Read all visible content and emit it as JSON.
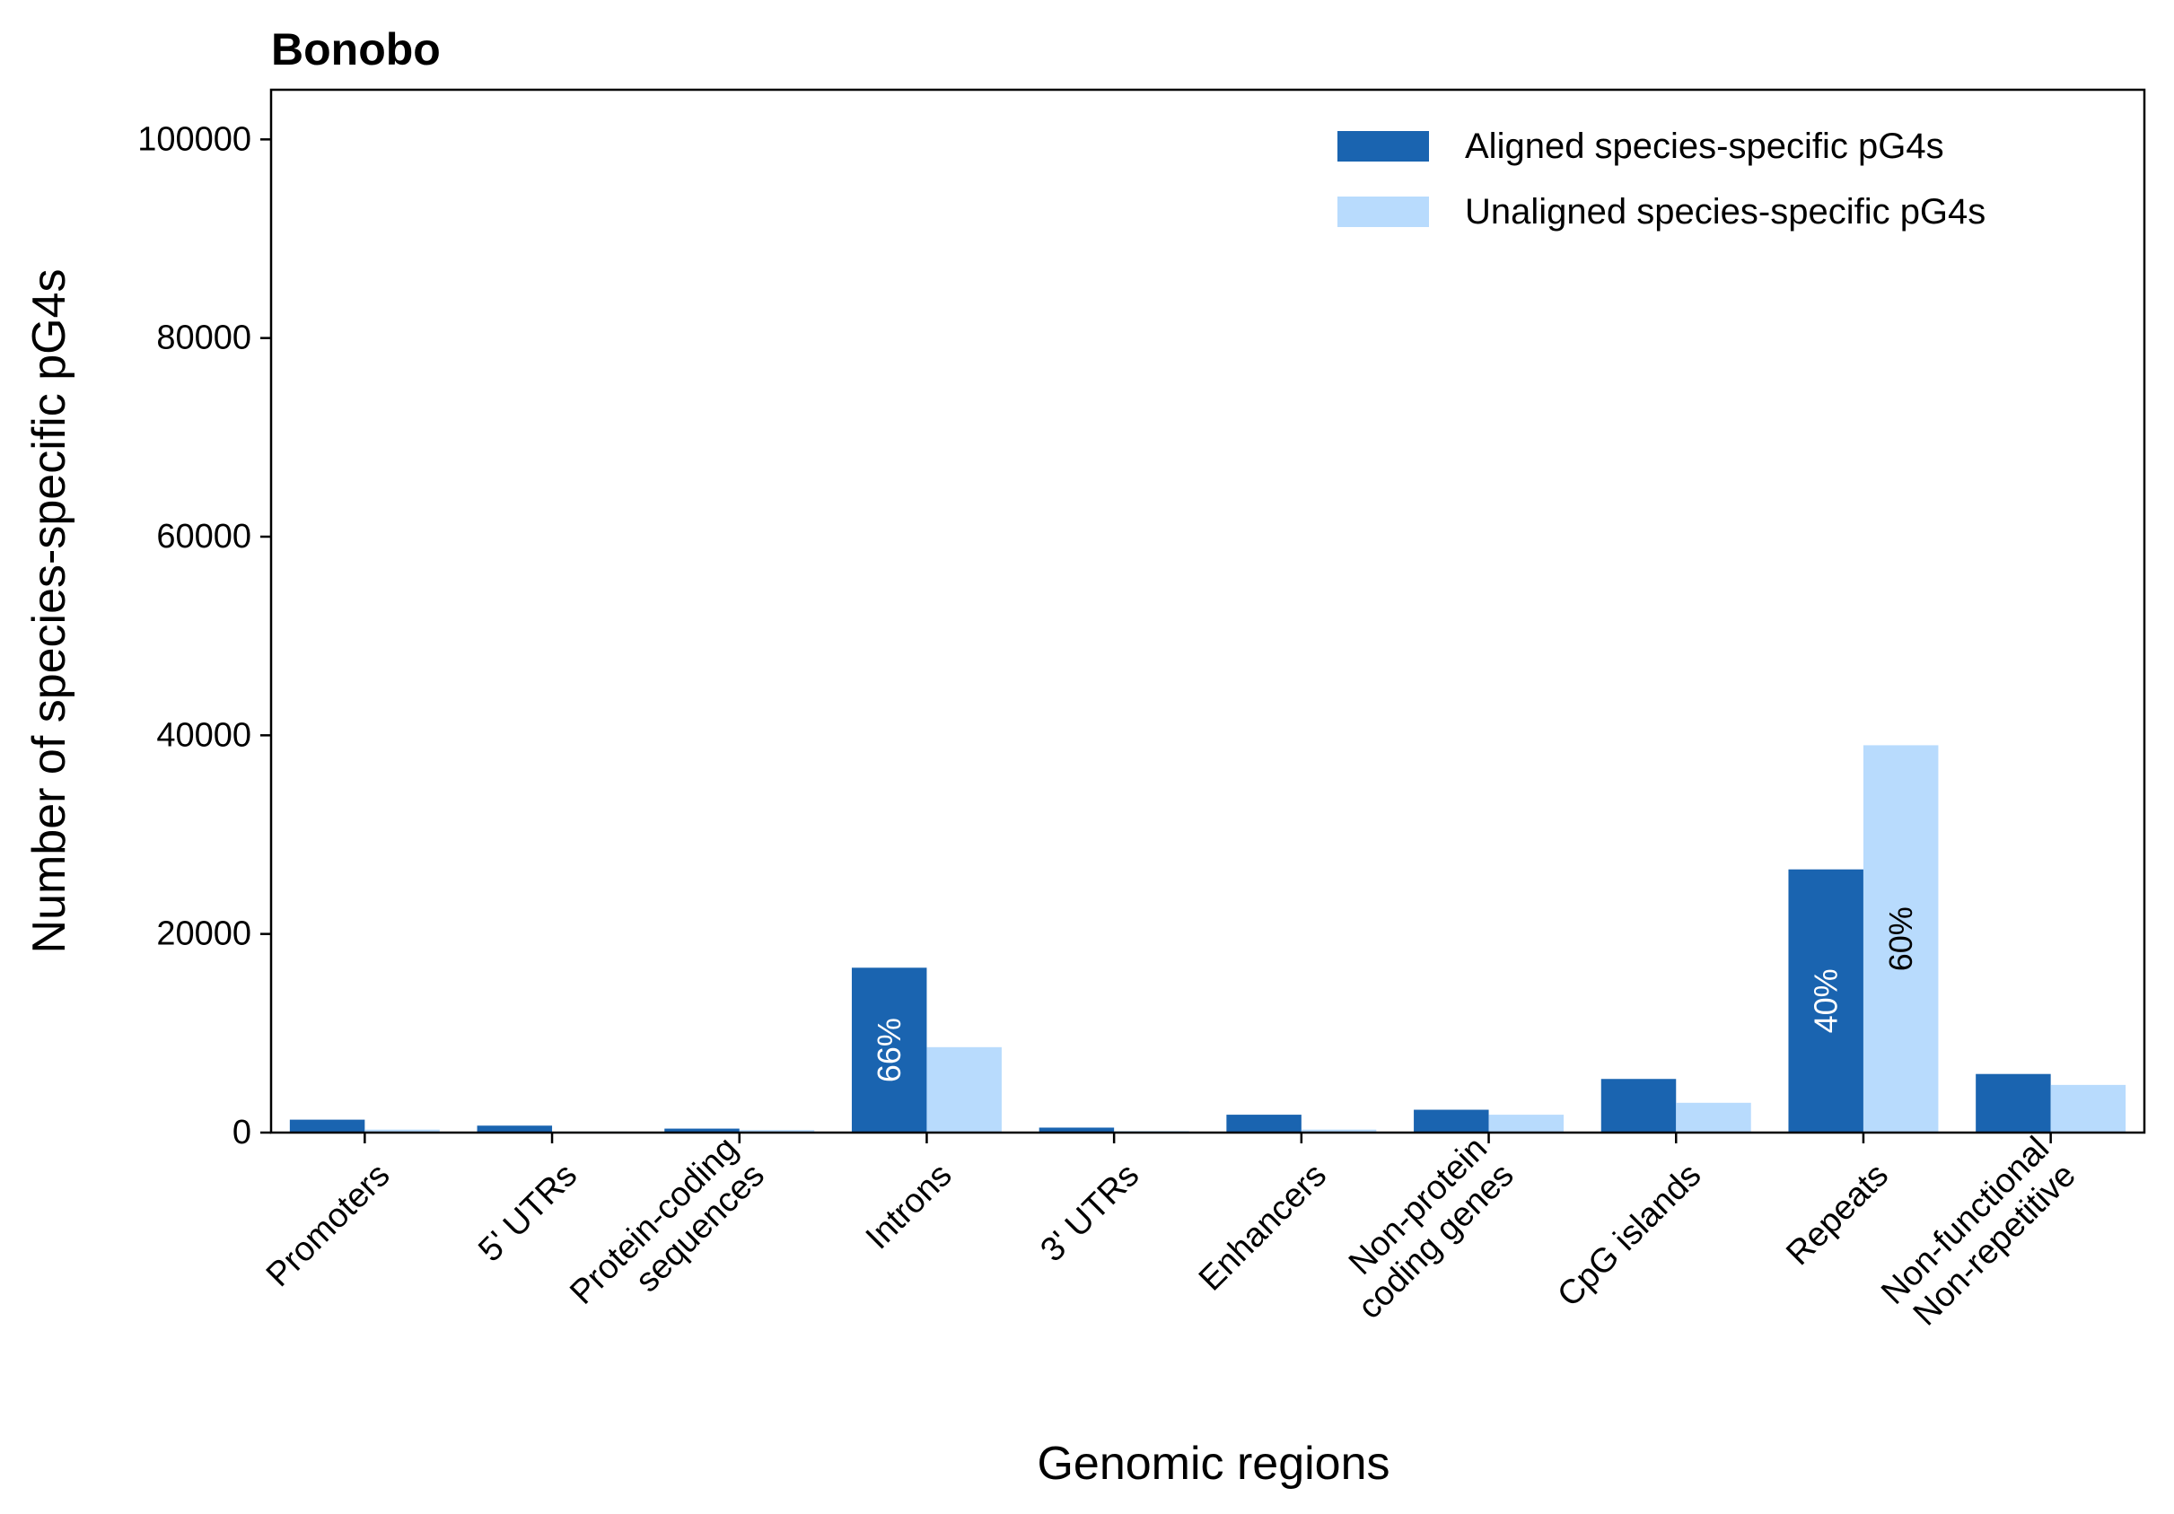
{
  "chart_data": {
    "type": "bar",
    "title": "Bonobo",
    "xlabel": "Genomic regions",
    "ylabel": "Number of species-specific pG4s",
    "ylim": [
      0,
      105000
    ],
    "yticks": [
      0,
      20000,
      40000,
      60000,
      80000,
      100000
    ],
    "grid": false,
    "legend_position": "top-right",
    "categories": [
      [
        "Promoters"
      ],
      [
        "5' UTRs"
      ],
      [
        "Protein-coding",
        "sequences"
      ],
      [
        "Introns"
      ],
      [
        "3' UTRs"
      ],
      [
        "Enhancers"
      ],
      [
        "Non-protein",
        "coding genes"
      ],
      [
        "CpG islands"
      ],
      [
        "Repeats"
      ],
      [
        "Non-functional",
        "Non-repetitive"
      ]
    ],
    "series": [
      {
        "name": "Aligned species-specific pG4s",
        "color": "#1a64b0",
        "values": [
          1300,
          700,
          400,
          16600,
          500,
          1800,
          2300,
          5400,
          26500,
          5900
        ]
      },
      {
        "name": "Unaligned species-specific pG4s",
        "color": "#b8dbfd",
        "values": [
          300,
          100,
          250,
          8600,
          150,
          300,
          1800,
          3000,
          39000,
          4800
        ]
      }
    ],
    "annotations": [
      {
        "text": "66%",
        "category": 3,
        "series": 0,
        "color": "#ffffff"
      },
      {
        "text": "40%",
        "category": 8,
        "series": 0,
        "color": "#ffffff"
      },
      {
        "text": "60%",
        "category": 8,
        "series": 1,
        "color": "#000000"
      }
    ]
  }
}
